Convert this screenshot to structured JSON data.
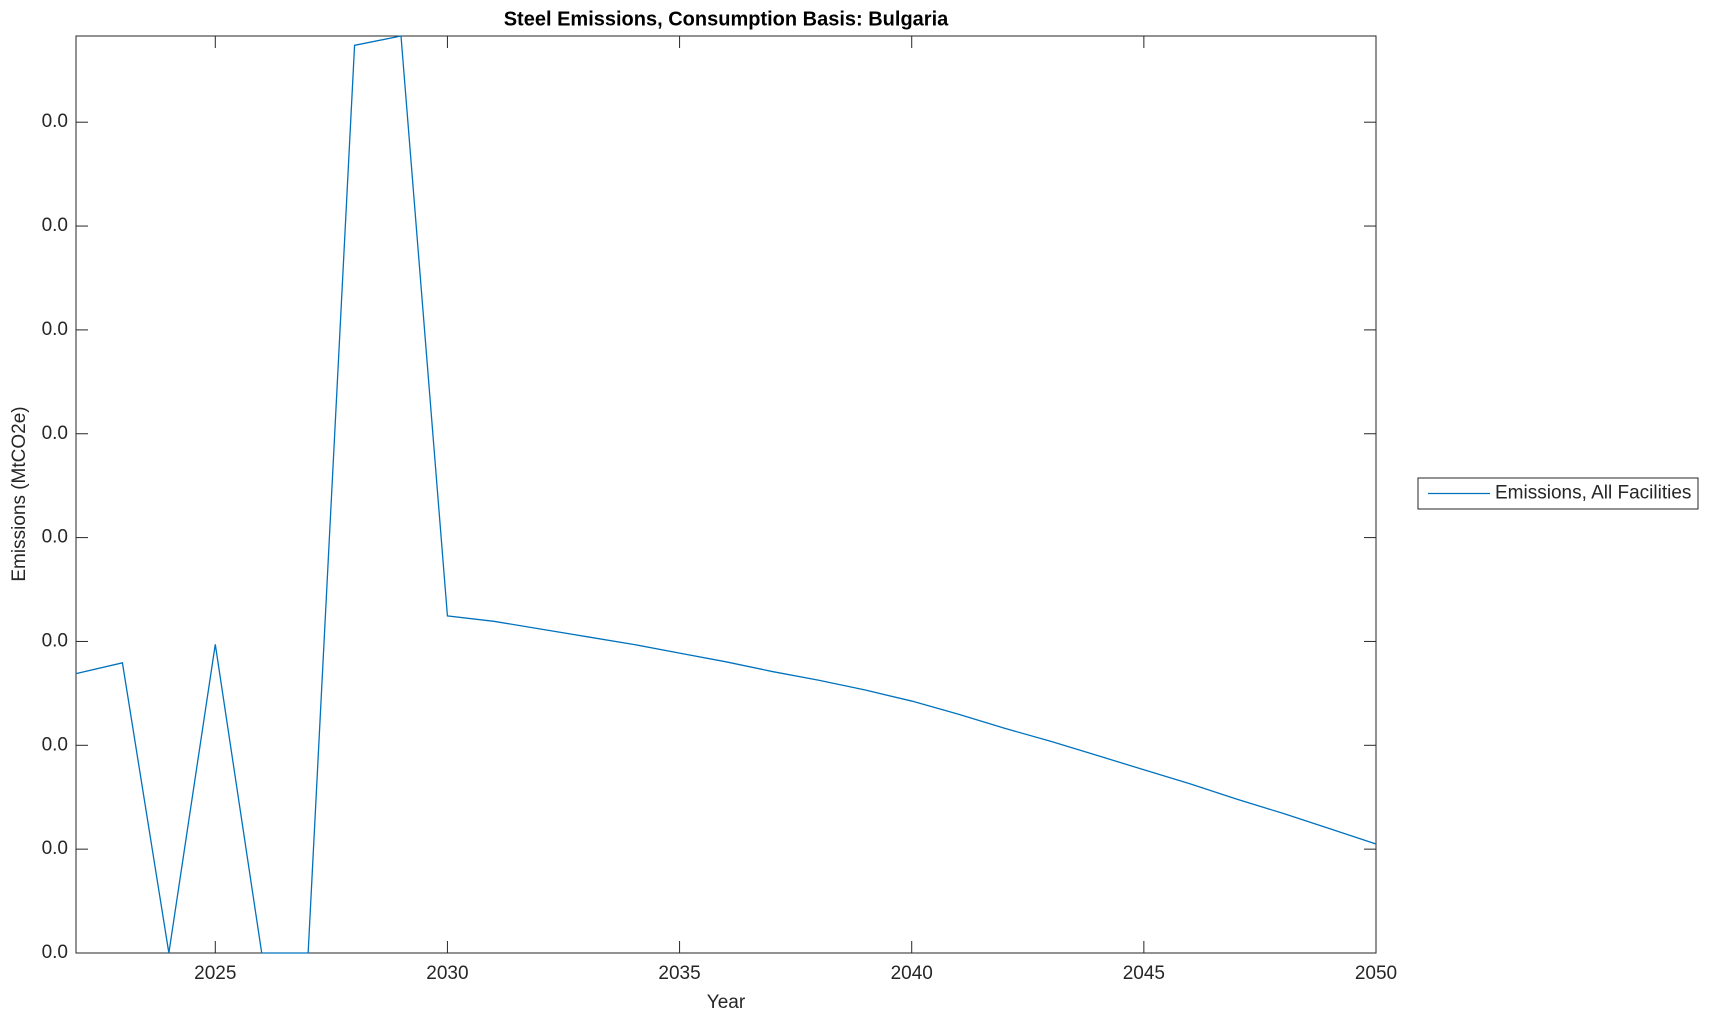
{
  "chart_data": {
    "type": "line",
    "title": "Steel Emissions, Consumption Basis: Bulgaria",
    "x_label": "Year",
    "y_label": "Emissions (MtCO2e)",
    "x": [
      2022,
      2023,
      2024,
      2025,
      2026,
      2027,
      2028,
      2029,
      2030,
      2031,
      2032,
      2033,
      2034,
      2035,
      2036,
      2037,
      2038,
      2039,
      2040,
      2041,
      2042,
      2043,
      2044,
      2045,
      2046,
      2047,
      2048,
      2049,
      2050
    ],
    "series": [
      {
        "name": "Emissions, All Facilities",
        "color": "#0072bd",
        "values": [
          0.001345,
          0.001397,
          0,
          0.001486,
          0,
          0,
          0.00437,
          0.004415,
          0.001623,
          0.001597,
          0.00156,
          0.001523,
          0.001486,
          0.001444,
          0.001402,
          0.001355,
          0.001313,
          0.001266,
          0.001213,
          0.00115,
          0.001082,
          0.001019,
          0.000951,
          0.000882,
          0.000814,
          0.000741,
          0.000672,
          0.000599,
          0.000525
        ]
      }
    ],
    "xlim": [
      2022,
      2050
    ],
    "xticks": [
      2025,
      2030,
      2035,
      2040,
      2045,
      2050
    ],
    "ylim": [
      0,
      0.004415
    ],
    "yticks": [
      {
        "value": 0,
        "label": "0.0"
      },
      {
        "value": 0.0005,
        "label": "0.0"
      },
      {
        "value": 0.001,
        "label": "0.0"
      },
      {
        "value": 0.0015,
        "label": "0.0"
      },
      {
        "value": 0.002,
        "label": "0.0"
      },
      {
        "value": 0.0025,
        "label": "0.0"
      },
      {
        "value": 0.003,
        "label": "0.0"
      },
      {
        "value": 0.0035,
        "label": "0.0"
      },
      {
        "value": 0.004,
        "label": "0.0"
      }
    ],
    "grid": false,
    "legend": "outside-right"
  }
}
